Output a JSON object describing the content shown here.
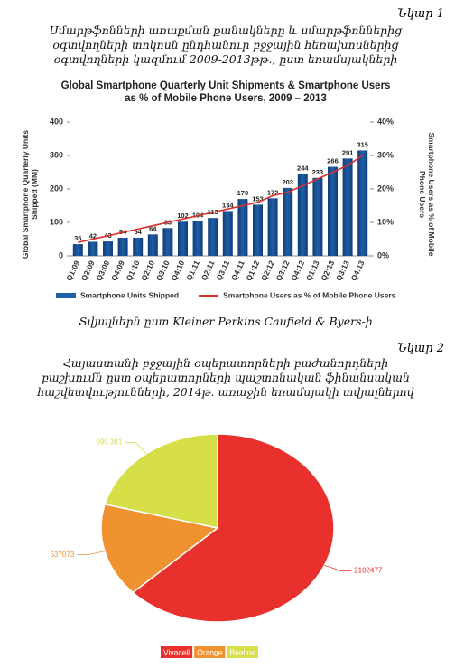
{
  "figure_labels": [
    "Նկար 1",
    "Նկար 2"
  ],
  "captions": [
    "Սմարթֆոնների առաքման քանակները և սմարթֆոններից օգտվողների տոկոսն ընդհանուր բջջային հեռախոսներից օգտվողների կազմում 2009-2013թթ., ըստ եռամսյակների",
    "Հայաստանի բջջային օպերատորների բաժանորդների բաշխումն ըստ օպերատորների պաշտոնական ֆինանսական հաշվետվությունների, 2014թ. առաջին եռամսյակի տվյալներով"
  ],
  "source": "Տվյալներն ըստ Kleiner Perkins Caufield & Byers-ի",
  "chart_data": [
    {
      "type": "bar",
      "title": "Global Smartphone Quarterly Unit Shipments & Smartphone Users as % of Mobile Phone Users, 2009 – 2013",
      "y_label": "Global Smartphone Quarterly Units Shipped (MM)",
      "y2_label": "Smartphone Users as % of Mobile Phone Users",
      "categories": [
        "Q1:09",
        "Q2:09",
        "Q3:09",
        "Q4:09",
        "Q1:10",
        "Q2:10",
        "Q3:10",
        "Q4:10",
        "Q1:11",
        "Q2:11",
        "Q3:11",
        "Q4:11",
        "Q1:12",
        "Q2:12",
        "Q3:12",
        "Q4:12",
        "Q1:13",
        "Q2:13",
        "Q3:13",
        "Q4:13"
      ],
      "series": [
        {
          "name": "Smartphone Units Shipped",
          "color": "#1f5fa6",
          "values": [
            35,
            42,
            43,
            54,
            54,
            64,
            83,
            102,
            104,
            113,
            134,
            170,
            153,
            172,
            203,
            244,
            233,
            266,
            291,
            315
          ]
        },
        {
          "name": "Smartphone Users as % of Mobile Phone Users",
          "color": "#d9302c",
          "axis": "y2",
          "values": [
            4,
            5,
            6,
            7,
            8,
            9,
            10,
            11,
            12,
            13,
            14,
            15,
            16,
            18,
            19,
            21,
            23,
            25,
            27,
            30
          ]
        }
      ],
      "ylim": [
        0,
        400
      ],
      "yticks": [
        0,
        100,
        200,
        300,
        400
      ],
      "y2lim": [
        0,
        40
      ],
      "y2ticks": [
        {
          "value": 0,
          "label": "0%"
        },
        {
          "value": 10,
          "label": "10%"
        },
        {
          "value": 20,
          "label": "20%"
        },
        {
          "value": 30,
          "label": "30%"
        },
        {
          "value": 40,
          "label": "40%"
        }
      ]
    },
    {
      "type": "pie",
      "categories": [
        "Vivacell",
        "Orange",
        "Beeline"
      ],
      "values": [
        2102477,
        537073,
        699381
      ],
      "value_labels": [
        "2102477",
        "537073",
        "699 381"
      ],
      "colors": [
        "#e8302c",
        "#f0922f",
        "#d6de48"
      ]
    }
  ]
}
